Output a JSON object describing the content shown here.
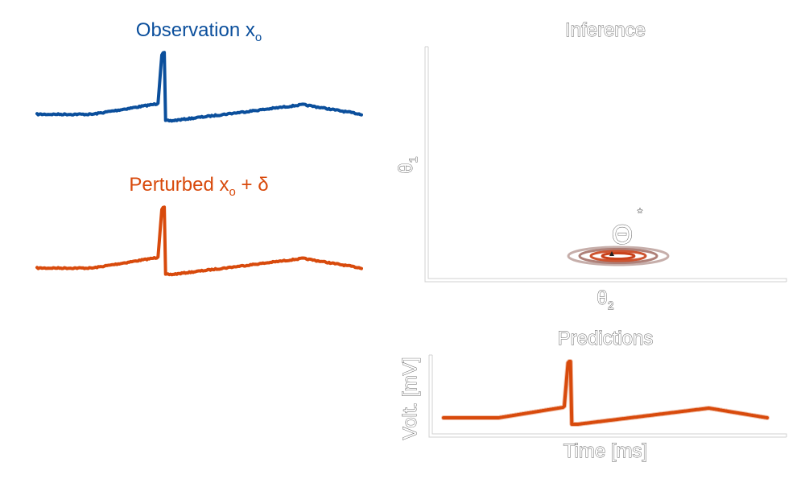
{
  "colors": {
    "observation": "#0b4f9c",
    "perturbed": "#d84a0c",
    "posterior_ring_outer": "#b89a95",
    "posterior_ring_inner": "#c9411a",
    "axis": "#d0d0d0",
    "outline_text": "#555555"
  },
  "observation": {
    "title_main": "Observation x",
    "title_sub": "o"
  },
  "perturbed": {
    "title_main": "Perturbed x",
    "title_sub": "o",
    "title_suffix": " + δ"
  },
  "inference": {
    "title": "Inference",
    "ylabel_main": "θ",
    "ylabel_sub": "1",
    "xlabel_main": "θ",
    "xlabel_sub": "2",
    "marker_label": "Θ",
    "marker_star": "*"
  },
  "predictions": {
    "title": "Predictions",
    "xlabel": "Time [ms]",
    "ylabel": "Volt. [mV]"
  }
}
